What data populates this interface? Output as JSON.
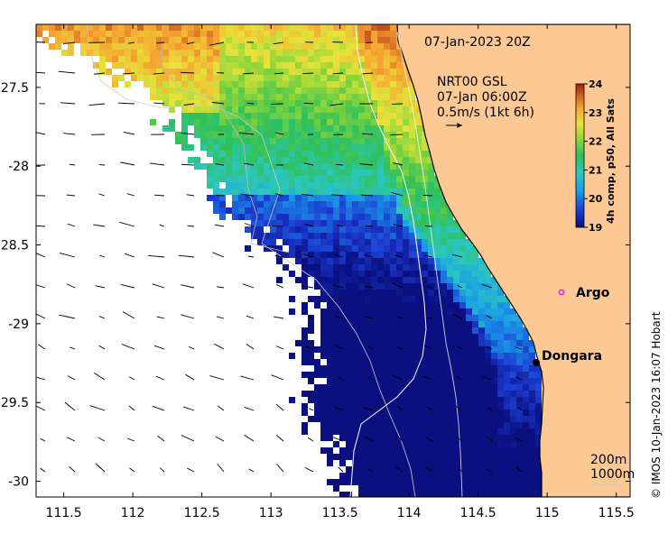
{
  "chart_data": {
    "type": "heatmap",
    "title": "07-Jan-2023 20Z",
    "current_label": {
      "line1": "NRT00 GSL",
      "line2": "07-Jan 06:00Z",
      "line3": "0.5m/s (1kt 6h)"
    },
    "x_ticks": [
      "111.5",
      "112",
      "112.5",
      "113",
      "113.5",
      "114",
      "114.5",
      "115",
      "115.5"
    ],
    "y_ticks": [
      "-27.5",
      "-28",
      "-28.5",
      "-29",
      "-29.5",
      "-30"
    ],
    "x_range": [
      111.3,
      115.6
    ],
    "y_range": [
      -30.1,
      -27.1
    ],
    "colorbar": {
      "title": "4h comp, p50, All Sats",
      "ticks": [
        "24",
        "23",
        "22",
        "21",
        "20",
        "19"
      ],
      "range": [
        19,
        24
      ]
    },
    "places": [
      {
        "name": "Argo",
        "lon": 115.1,
        "lat": -28.8,
        "marker": "magenta-circle"
      },
      {
        "name": "Dongara",
        "lon": 114.93,
        "lat": -29.25,
        "marker": "black-dot"
      }
    ],
    "depth_contours": [
      "200m",
      "1000m"
    ],
    "colors": {
      "land": "#fcc994",
      "sst_low": "#0a1a8c",
      "sst_high": "#a31f12"
    }
  },
  "credit": "© IMOS 10-Jan-2023 16:07 Hobart"
}
